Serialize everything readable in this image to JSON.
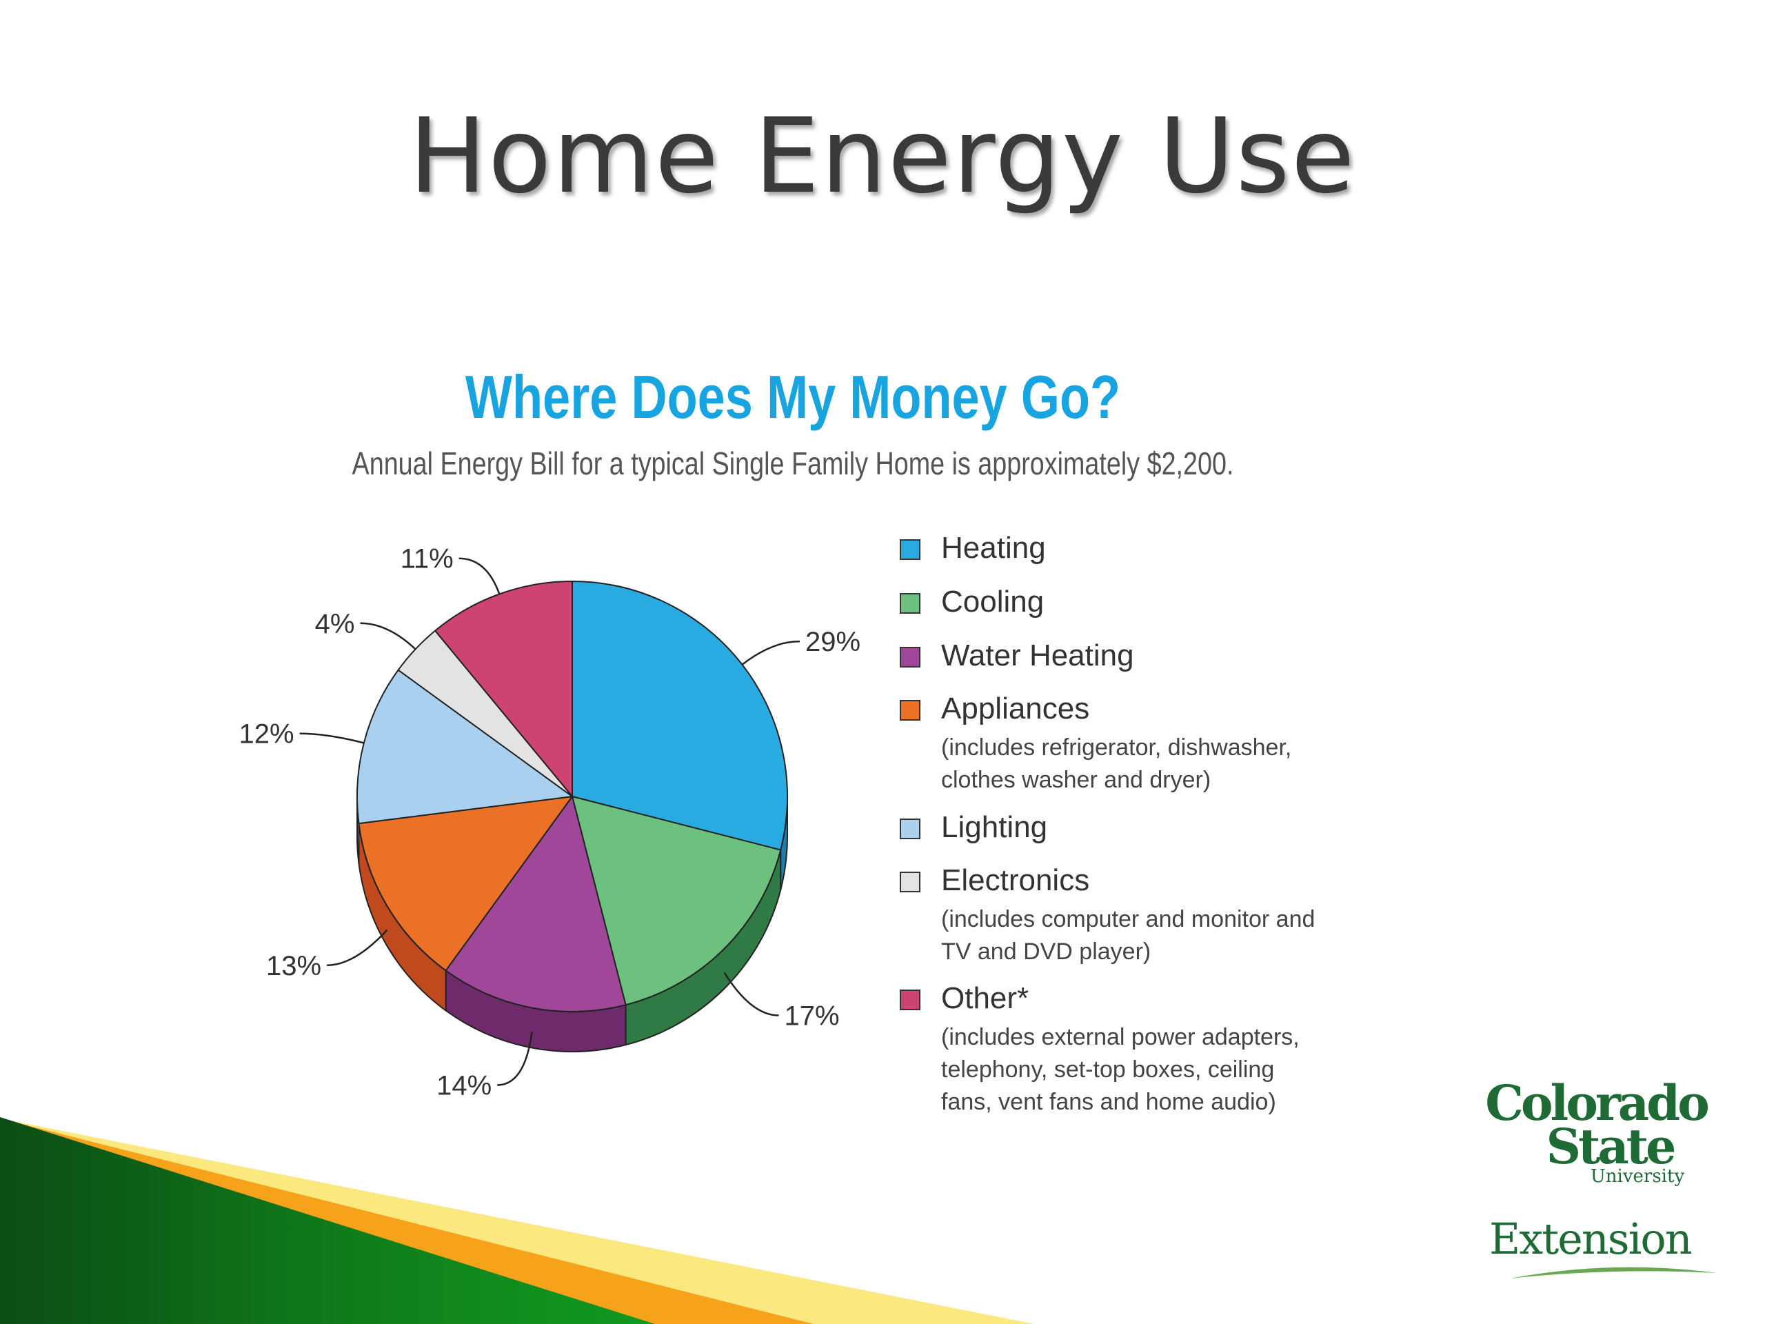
{
  "slide": {
    "title": "Home Energy Use"
  },
  "chart_data": {
    "type": "pie",
    "title": "Where Does My Money Go?",
    "subtitle": "Annual Energy Bill for a typical Single Family Home is approximately $2,200.",
    "legend_position": "right",
    "slices": [
      {
        "name": "Heating",
        "value": 29,
        "label": "29%",
        "color": "#29abe2",
        "side_color": "#1b7fb0"
      },
      {
        "name": "Cooling",
        "value": 17,
        "label": "17%",
        "color": "#6cc17e",
        "side_color": "#2f7a45"
      },
      {
        "name": "Water Heating",
        "value": 14,
        "label": "14%",
        "color": "#a0479a",
        "side_color": "#6e2a6b"
      },
      {
        "name": "Appliances",
        "value": 13,
        "label": "13%",
        "color": "#ea7126",
        "side_color": "#c04a1e"
      },
      {
        "name": "Lighting",
        "value": 12,
        "label": "12%",
        "color": "#a9d1ef",
        "side_color": "#7aa9cc"
      },
      {
        "name": "Electronics",
        "value": 4,
        "label": "4%",
        "color": "#e3e3e3",
        "side_color": "#b5b5b5"
      },
      {
        "name": "Other*",
        "value": 11,
        "label": "11%",
        "color": "#cd4371",
        "side_color": "#9a2d52"
      }
    ],
    "legend": [
      {
        "label": "Heating",
        "color": "#29abe2",
        "note": ""
      },
      {
        "label": "Cooling",
        "color": "#6cc17e",
        "note": ""
      },
      {
        "label": "Water Heating",
        "color": "#a0479a",
        "note": ""
      },
      {
        "label": "Appliances",
        "color": "#ea7126",
        "note": "(includes refrigerator, dishwasher, clothes washer and dryer)"
      },
      {
        "label": "Lighting",
        "color": "#a9d1ef",
        "note": ""
      },
      {
        "label": "Electronics",
        "color": "#e3e3e3",
        "note": "(includes computer and monitor and TV and DVD player)"
      },
      {
        "label": "Other*",
        "color": "#cd4371",
        "note": "(includes external power adapters, telephony, set-top boxes, ceiling fans, vent fans and home audio)"
      }
    ]
  },
  "logo": {
    "line1": "Colorado",
    "line2": "State",
    "line3": "University",
    "extension": "Extension"
  },
  "colors": {
    "accent_title": "#18a4e0",
    "stripe_green_dark": "#0b4d14",
    "stripe_green": "#0f7a1a",
    "stripe_orange": "#f7a21b",
    "stripe_yellow": "#fbe87e",
    "logo_green": "#1e6b35"
  }
}
